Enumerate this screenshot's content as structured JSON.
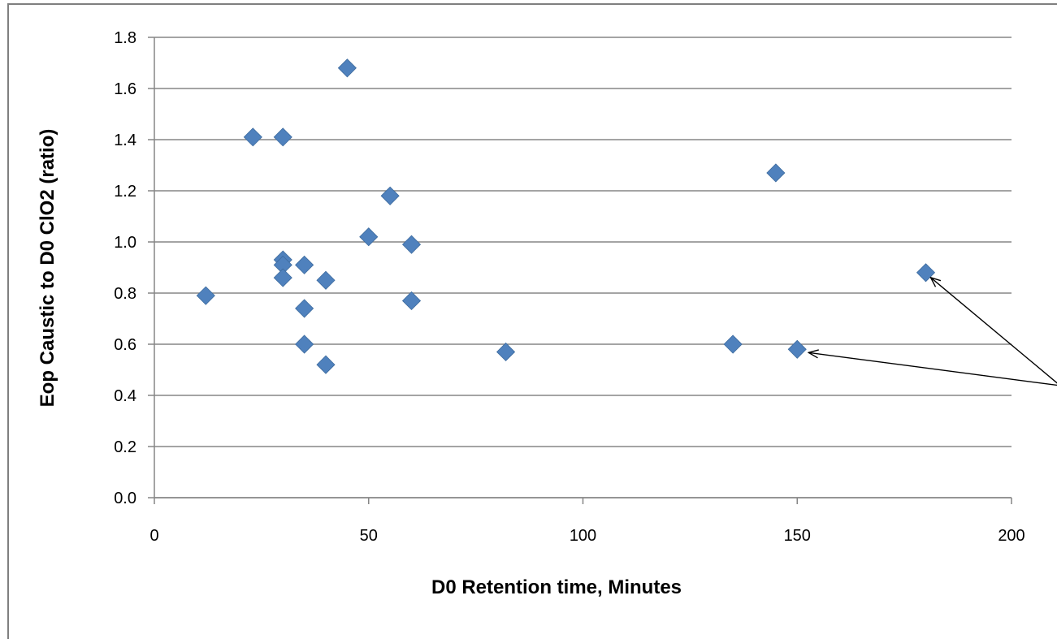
{
  "chart_data": {
    "type": "scatter",
    "title": "",
    "xlabel": "D0 Retention time, Minutes",
    "ylabel": "Eop Caustic to D0 ClO2 (ratio)",
    "xlim": [
      0,
      200
    ],
    "ylim": [
      0.0,
      1.8
    ],
    "x_ticks": [
      "0",
      "50",
      "100",
      "150",
      "200"
    ],
    "y_ticks": [
      "0.0",
      "0.2",
      "0.4",
      "0.6",
      "0.8",
      "1.0",
      "1.2",
      "1.4",
      "1.6",
      "1.8"
    ],
    "grid": "horizontal",
    "legend": "none",
    "marker": "diamond",
    "marker_color": "#4F81BD",
    "annotation": "arrows pointing to points at x=150 and x=180",
    "points": [
      {
        "x": 12,
        "y": 0.79
      },
      {
        "x": 23,
        "y": 1.41
      },
      {
        "x": 30,
        "y": 1.41
      },
      {
        "x": 30,
        "y": 0.93
      },
      {
        "x": 30,
        "y": 0.91
      },
      {
        "x": 30,
        "y": 0.86
      },
      {
        "x": 35,
        "y": 0.91
      },
      {
        "x": 35,
        "y": 0.74
      },
      {
        "x": 35,
        "y": 0.6
      },
      {
        "x": 40,
        "y": 0.85
      },
      {
        "x": 40,
        "y": 0.52
      },
      {
        "x": 45,
        "y": 1.68
      },
      {
        "x": 50,
        "y": 1.02
      },
      {
        "x": 55,
        "y": 1.18
      },
      {
        "x": 60,
        "y": 0.99
      },
      {
        "x": 60,
        "y": 0.77
      },
      {
        "x": 82,
        "y": 0.57
      },
      {
        "x": 135,
        "y": 0.6
      },
      {
        "x": 145,
        "y": 1.27
      },
      {
        "x": 150,
        "y": 0.58
      },
      {
        "x": 180,
        "y": 0.88
      }
    ]
  }
}
